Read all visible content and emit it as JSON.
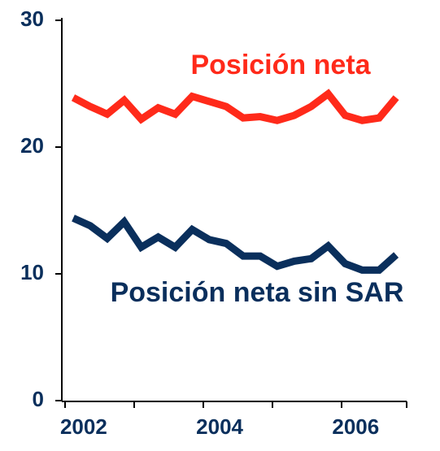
{
  "chart_data": {
    "type": "line",
    "categories": [
      null,
      "2002",
      null,
      null,
      null,
      null,
      null,
      null,
      null,
      "2004",
      null,
      null,
      null,
      null,
      null,
      null,
      null,
      "2006",
      null,
      null
    ],
    "series": [
      {
        "name": "Posición neta",
        "color": "#ff2a1a",
        "values": [
          23.9,
          23.2,
          22.6,
          23.7,
          22.2,
          23.1,
          22.6,
          24.0,
          23.6,
          23.2,
          22.3,
          22.4,
          22.1,
          22.5,
          23.2,
          24.2,
          22.5,
          22.1,
          22.3,
          23.9
        ]
      },
      {
        "name": "Posición neta sin SAR",
        "color": "#0a2f5c",
        "values": [
          14.4,
          13.8,
          12.8,
          14.1,
          12.1,
          12.9,
          12.1,
          13.5,
          12.7,
          12.4,
          11.4,
          11.4,
          10.6,
          11.0,
          11.2,
          12.2,
          10.8,
          10.3,
          10.3,
          11.5
        ]
      }
    ],
    "ylim": [
      0,
      30
    ],
    "yticks": [
      0,
      10,
      20,
      30
    ]
  }
}
